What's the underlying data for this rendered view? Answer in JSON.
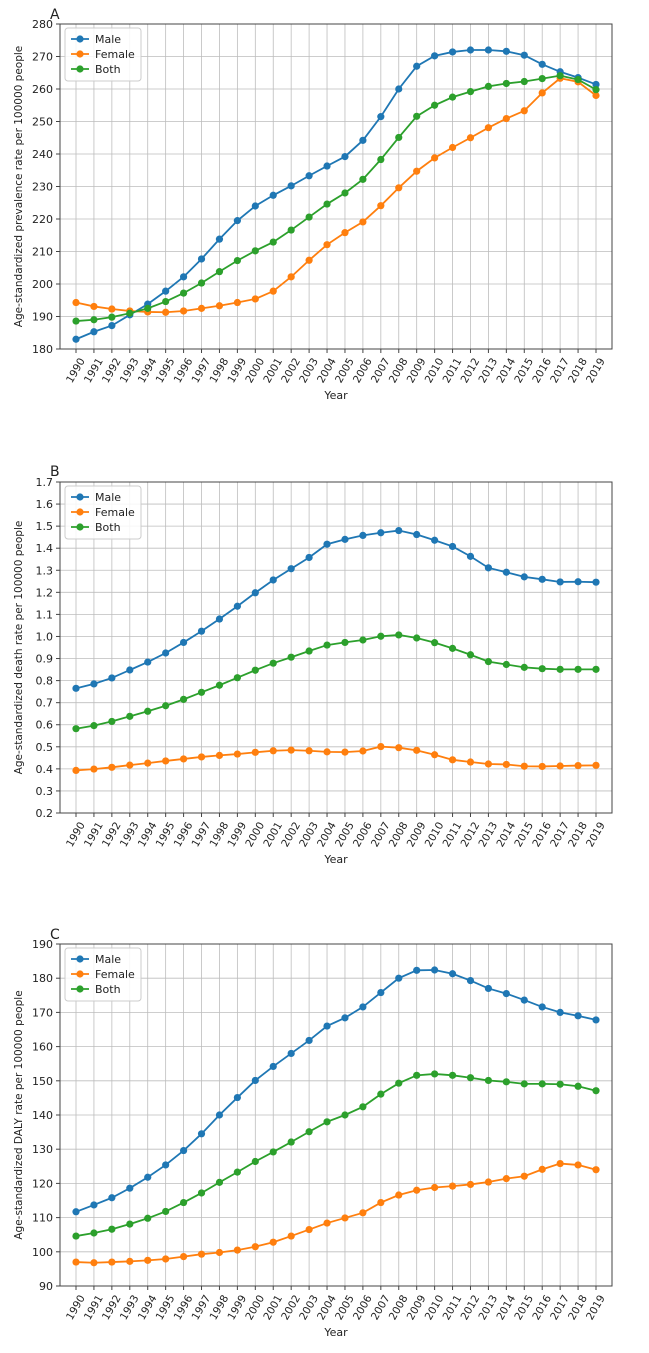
{
  "chart_data": [
    {
      "type": "line",
      "panel_label": "A",
      "title": "",
      "xlabel": "Year",
      "ylabel": "Age-standardized prevalence rate per 100000 people",
      "x": [
        "1990",
        "1991",
        "1992",
        "1993",
        "1994",
        "1995",
        "1996",
        "1997",
        "1998",
        "1999",
        "2000",
        "2001",
        "2002",
        "2003",
        "2004",
        "2005",
        "2006",
        "2007",
        "2008",
        "2009",
        "2010",
        "2011",
        "2012",
        "2013",
        "2014",
        "2015",
        "2016",
        "2017",
        "2018",
        "2019"
      ],
      "ylim": [
        180,
        280
      ],
      "yticks": [
        180,
        190,
        200,
        210,
        220,
        230,
        240,
        250,
        260,
        270,
        280
      ],
      "ytick_labels": [
        "180",
        "190",
        "200",
        "210",
        "220",
        "230",
        "240",
        "250",
        "260",
        "270",
        "280"
      ],
      "grid": true,
      "legend_position": "top-left",
      "series": [
        {
          "name": "Male",
          "color": "#1f77b4",
          "values": [
            183.0,
            185.3,
            187.2,
            190.5,
            193.8,
            197.8,
            202.2,
            207.7,
            213.8,
            219.5,
            224.0,
            227.3,
            230.2,
            233.3,
            236.3,
            239.2,
            244.2,
            251.5,
            260.0,
            267.0,
            270.2,
            271.4,
            272.0,
            272.0,
            271.6,
            270.4,
            267.6,
            265.3,
            263.5,
            261.4
          ]
        },
        {
          "name": "Female",
          "color": "#ff7f0e",
          "values": [
            194.3,
            193.1,
            192.3,
            191.7,
            191.4,
            191.3,
            191.7,
            192.5,
            193.3,
            194.3,
            195.4,
            197.8,
            202.2,
            207.3,
            212.1,
            215.8,
            219.1,
            224.1,
            229.6,
            234.7,
            238.8,
            242.0,
            245.0,
            248.1,
            250.9,
            253.3,
            258.8,
            263.3,
            262.2,
            258.0
          ]
        },
        {
          "name": "Both",
          "color": "#2ca02c",
          "values": [
            188.6,
            189.0,
            189.8,
            191.0,
            192.5,
            194.6,
            197.2,
            200.3,
            203.8,
            207.2,
            210.2,
            212.9,
            216.6,
            220.6,
            224.6,
            228.0,
            232.2,
            238.3,
            245.1,
            251.6,
            255.0,
            257.5,
            259.2,
            260.8,
            261.7,
            262.3,
            263.2,
            264.1,
            262.9,
            259.8
          ]
        }
      ]
    },
    {
      "type": "line",
      "panel_label": "B",
      "title": "",
      "xlabel": "Year",
      "ylabel": "Age-standardized death rate per 100000 people",
      "x": [
        "1990",
        "1991",
        "1992",
        "1993",
        "1994",
        "1995",
        "1996",
        "1997",
        "1998",
        "1999",
        "2000",
        "2001",
        "2002",
        "2003",
        "2004",
        "2005",
        "2006",
        "2007",
        "2008",
        "2009",
        "2010",
        "2011",
        "2012",
        "2013",
        "2014",
        "2015",
        "2016",
        "2017",
        "2018",
        "2019"
      ],
      "ylim": [
        0.2,
        1.7
      ],
      "yticks": [
        0.2,
        0.3,
        0.4,
        0.5,
        0.6,
        0.7,
        0.8,
        0.9,
        1.0,
        1.1,
        1.2,
        1.3,
        1.4,
        1.5,
        1.6,
        1.7
      ],
      "ytick_labels": [
        "0.2",
        "0.3",
        "0.4",
        "0.5",
        "0.6",
        "0.7",
        "0.8",
        "0.9",
        "1.0",
        "1.1",
        "1.2",
        "1.3",
        "1.4",
        "1.5",
        "1.6",
        "1.7"
      ],
      "grid": true,
      "legend_position": "top-left",
      "series": [
        {
          "name": "Male",
          "color": "#1f77b4",
          "values": [
            0.765,
            0.785,
            0.812,
            0.848,
            0.884,
            0.925,
            0.973,
            1.024,
            1.079,
            1.137,
            1.198,
            1.256,
            1.307,
            1.358,
            1.418,
            1.44,
            1.458,
            1.47,
            1.48,
            1.462,
            1.436,
            1.408,
            1.363,
            1.311,
            1.291,
            1.27,
            1.259,
            1.247,
            1.248,
            1.246
          ]
        },
        {
          "name": "Female",
          "color": "#ff7f0e",
          "values": [
            0.393,
            0.399,
            0.407,
            0.417,
            0.426,
            0.436,
            0.445,
            0.454,
            0.461,
            0.467,
            0.475,
            0.482,
            0.485,
            0.482,
            0.477,
            0.476,
            0.481,
            0.501,
            0.496,
            0.484,
            0.464,
            0.441,
            0.431,
            0.422,
            0.42,
            0.412,
            0.411,
            0.413,
            0.415,
            0.416
          ]
        },
        {
          "name": "Both",
          "color": "#2ca02c",
          "values": [
            0.582,
            0.596,
            0.615,
            0.638,
            0.661,
            0.686,
            0.715,
            0.747,
            0.779,
            0.813,
            0.847,
            0.879,
            0.906,
            0.934,
            0.961,
            0.973,
            0.984,
            1.001,
            1.007,
            0.993,
            0.972,
            0.946,
            0.917,
            0.886,
            0.873,
            0.86,
            0.854,
            0.851,
            0.851,
            0.851
          ]
        }
      ]
    },
    {
      "type": "line",
      "panel_label": "C",
      "title": "",
      "xlabel": "Year",
      "ylabel": "Age-standardized DALY rate per 100000 people",
      "x": [
        "1990",
        "1991",
        "1992",
        "1993",
        "1994",
        "1995",
        "1996",
        "1997",
        "1998",
        "1999",
        "2000",
        "2001",
        "2002",
        "2003",
        "2004",
        "2005",
        "2006",
        "2007",
        "2008",
        "2009",
        "2010",
        "2011",
        "2012",
        "2013",
        "2014",
        "2015",
        "2016",
        "2017",
        "2018",
        "2019"
      ],
      "ylim": [
        90,
        190
      ],
      "yticks": [
        90,
        100,
        110,
        120,
        130,
        140,
        150,
        160,
        170,
        180,
        190
      ],
      "ytick_labels": [
        "90",
        "100",
        "110",
        "120",
        "130",
        "140",
        "150",
        "160",
        "170",
        "180",
        "190"
      ],
      "grid": true,
      "legend_position": "top-left",
      "series": [
        {
          "name": "Male",
          "color": "#1f77b4",
          "values": [
            111.7,
            113.7,
            115.8,
            118.6,
            121.8,
            125.4,
            129.6,
            134.5,
            140.0,
            145.1,
            150.1,
            154.2,
            158.0,
            161.8,
            166.0,
            168.4,
            171.6,
            175.8,
            180.0,
            182.3,
            182.4,
            181.3,
            179.3,
            177.0,
            175.5,
            173.6,
            171.6,
            170.0,
            169.0,
            167.8
          ]
        },
        {
          "name": "Female",
          "color": "#ff7f0e",
          "values": [
            97.0,
            96.8,
            97.0,
            97.2,
            97.5,
            97.9,
            98.6,
            99.3,
            99.8,
            100.5,
            101.5,
            102.8,
            104.6,
            106.5,
            108.4,
            109.9,
            111.4,
            114.4,
            116.6,
            118.0,
            118.8,
            119.2,
            119.7,
            120.4,
            121.4,
            122.1,
            124.1,
            125.8,
            125.4,
            124.0
          ]
        },
        {
          "name": "Both",
          "color": "#2ca02c",
          "values": [
            104.6,
            105.5,
            106.6,
            108.1,
            109.8,
            111.8,
            114.4,
            117.2,
            120.3,
            123.3,
            126.4,
            129.2,
            132.1,
            135.1,
            138.0,
            140.0,
            142.4,
            146.1,
            149.3,
            151.6,
            152.0,
            151.6,
            150.9,
            150.1,
            149.7,
            149.1,
            149.1,
            149.0,
            148.4,
            147.1
          ]
        }
      ]
    }
  ]
}
